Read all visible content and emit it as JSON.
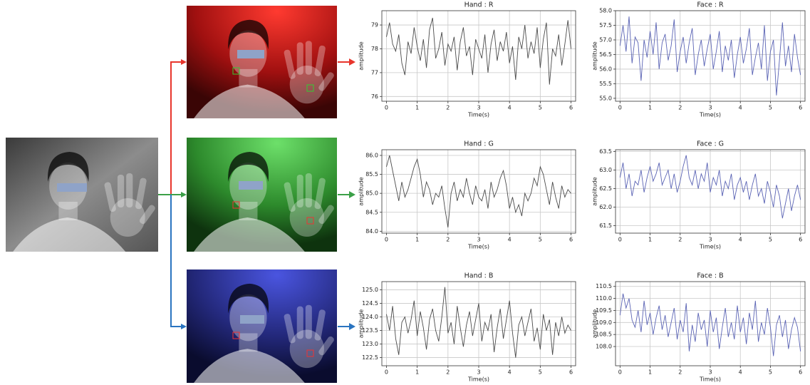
{
  "chart_data": [
    {
      "type": "line",
      "title": "Hand : R",
      "x_label": "Time(s)",
      "y_label": "amplitude",
      "x": [
        0,
        0.1,
        0.2,
        0.3,
        0.4,
        0.5,
        0.6,
        0.7,
        0.8,
        0.9,
        1,
        1.1,
        1.2,
        1.3,
        1.4,
        1.5,
        1.6,
        1.7,
        1.8,
        1.9,
        2,
        2.1,
        2.2,
        2.3,
        2.4,
        2.5,
        2.6,
        2.7,
        2.8,
        2.9,
        3,
        3.1,
        3.2,
        3.3,
        3.4,
        3.5,
        3.6,
        3.7,
        3.8,
        3.9,
        4,
        4.1,
        4.2,
        4.3,
        4.4,
        4.5,
        4.6,
        4.7,
        4.8,
        4.9,
        5,
        5.1,
        5.2,
        5.3,
        5.4,
        5.5,
        5.6,
        5.7,
        5.8,
        5.9,
        6
      ],
      "values": [
        78.5,
        79.1,
        78.2,
        77.9,
        78.6,
        77.4,
        76.9,
        78.3,
        77.8,
        78.9,
        78.1,
        77.5,
        78.4,
        77.2,
        78.8,
        79.3,
        77.6,
        78.0,
        78.7,
        77.3,
        78.2,
        77.9,
        78.5,
        77.1,
        78.3,
        78.9,
        77.7,
        78.1,
        76.9,
        78.4,
        78.0,
        77.6,
        78.6,
        77.0,
        78.2,
        78.8,
        77.5,
        78.3,
        77.9,
        78.7,
        77.4,
        78.1,
        76.7,
        78.5,
        78.0,
        79.0,
        77.6,
        78.3,
        77.8,
        78.9,
        77.2,
        78.4,
        79.1,
        76.5,
        78.0,
        77.7,
        78.6,
        77.3,
        78.2,
        79.2,
        78.0
      ],
      "color": "#4a4a4a",
      "xlim": [
        -0.15,
        6.15
      ],
      "xticks": [
        0,
        1,
        2,
        3,
        4,
        5,
        6
      ],
      "ylim": [
        75.8,
        79.6
      ],
      "yticks": [
        76,
        77,
        78,
        79
      ],
      "grid": true
    },
    {
      "type": "line",
      "title": "Face : R",
      "x_label": "Time(s)",
      "y_label": "amplitude",
      "x": [
        0,
        0.1,
        0.2,
        0.3,
        0.4,
        0.5,
        0.6,
        0.7,
        0.8,
        0.9,
        1,
        1.1,
        1.2,
        1.3,
        1.4,
        1.5,
        1.6,
        1.7,
        1.8,
        1.9,
        2,
        2.1,
        2.2,
        2.3,
        2.4,
        2.5,
        2.6,
        2.7,
        2.8,
        2.9,
        3,
        3.1,
        3.2,
        3.3,
        3.4,
        3.5,
        3.6,
        3.7,
        3.8,
        3.9,
        4,
        4.1,
        4.2,
        4.3,
        4.4,
        4.5,
        4.6,
        4.7,
        4.8,
        4.9,
        5,
        5.1,
        5.2,
        5.3,
        5.4,
        5.5,
        5.6,
        5.7,
        5.8,
        5.9,
        6
      ],
      "values": [
        56.8,
        57.5,
        56.6,
        57.8,
        56.2,
        57.1,
        56.9,
        55.6,
        57.0,
        56.4,
        57.3,
        56.5,
        57.6,
        56.0,
        56.9,
        57.2,
        56.3,
        56.8,
        57.7,
        55.9,
        56.6,
        57.1,
        56.2,
        56.9,
        57.4,
        55.8,
        56.5,
        57.0,
        56.1,
        56.7,
        57.2,
        56.0,
        56.6,
        57.3,
        55.9,
        56.8,
        56.3,
        57.0,
        55.7,
        56.5,
        57.1,
        56.2,
        56.7,
        57.4,
        55.8,
        56.4,
        56.9,
        56.0,
        57.5,
        55.6,
        56.6,
        57.0,
        55.1,
        56.3,
        57.6,
        56.1,
        56.8,
        55.9,
        57.2,
        56.4,
        55.8
      ],
      "color": "#5a63b4",
      "xlim": [
        -0.15,
        6.15
      ],
      "xticks": [
        0,
        1,
        2,
        3,
        4,
        5,
        6
      ],
      "ylim": [
        54.9,
        58.0
      ],
      "yticks": [
        {
          "value": 55,
          "label": "55.0"
        },
        55.5,
        {
          "value": 56,
          "label": "56.0"
        },
        56.5,
        {
          "value": 57,
          "label": "57.0"
        },
        57.5,
        {
          "value": 58,
          "label": "58.0"
        }
      ],
      "grid": true
    },
    {
      "type": "line",
      "title": "Hand : G",
      "x_label": "Time(s)",
      "y_label": "amplitude",
      "x": [
        0,
        0.1,
        0.2,
        0.3,
        0.4,
        0.5,
        0.6,
        0.7,
        0.8,
        0.9,
        1,
        1.1,
        1.2,
        1.3,
        1.4,
        1.5,
        1.6,
        1.7,
        1.8,
        1.9,
        2,
        2.1,
        2.2,
        2.3,
        2.4,
        2.5,
        2.6,
        2.7,
        2.8,
        2.9,
        3,
        3.1,
        3.2,
        3.3,
        3.4,
        3.5,
        3.6,
        3.7,
        3.8,
        3.9,
        4,
        4.1,
        4.2,
        4.3,
        4.4,
        4.5,
        4.6,
        4.7,
        4.8,
        4.9,
        5,
        5.1,
        5.2,
        5.3,
        5.4,
        5.5,
        5.6,
        5.7,
        5.8,
        5.9,
        6
      ],
      "values": [
        85.7,
        86.0,
        85.6,
        85.2,
        84.8,
        85.3,
        84.9,
        85.1,
        85.4,
        85.7,
        85.9,
        85.5,
        84.9,
        85.3,
        85.1,
        84.7,
        85.0,
        84.9,
        85.2,
        84.6,
        84.1,
        85.0,
        85.3,
        84.8,
        85.1,
        84.9,
        85.4,
        85.0,
        84.7,
        85.2,
        84.9,
        84.8,
        85.1,
        84.6,
        85.3,
        84.9,
        85.1,
        85.4,
        85.6,
        85.2,
        84.6,
        84.9,
        84.5,
        84.7,
        84.4,
        85.0,
        84.8,
        85.0,
        85.4,
        85.2,
        85.7,
        85.5,
        85.1,
        84.7,
        85.3,
        84.9,
        84.6,
        85.2,
        84.9,
        85.1,
        85.0
      ],
      "color": "#4a4a4a",
      "xlim": [
        -0.15,
        6.15
      ],
      "xticks": [
        0,
        1,
        2,
        3,
        4,
        5,
        6
      ],
      "ylim": [
        83.95,
        86.15
      ],
      "yticks": [
        {
          "value": 84,
          "label": "84.0"
        },
        84.5,
        {
          "value": 85,
          "label": "85.0"
        },
        85.5,
        {
          "value": 86,
          "label": "86.0"
        }
      ],
      "grid": true
    },
    {
      "type": "line",
      "title": "Face : G",
      "x_label": "Time(s)",
      "y_label": "amplitude",
      "x": [
        0,
        0.1,
        0.2,
        0.3,
        0.4,
        0.5,
        0.6,
        0.7,
        0.8,
        0.9,
        1,
        1.1,
        1.2,
        1.3,
        1.4,
        1.5,
        1.6,
        1.7,
        1.8,
        1.9,
        2,
        2.1,
        2.2,
        2.3,
        2.4,
        2.5,
        2.6,
        2.7,
        2.8,
        2.9,
        3,
        3.1,
        3.2,
        3.3,
        3.4,
        3.5,
        3.6,
        3.7,
        3.8,
        3.9,
        4,
        4.1,
        4.2,
        4.3,
        4.4,
        4.5,
        4.6,
        4.7,
        4.8,
        4.9,
        5,
        5.1,
        5.2,
        5.3,
        5.4,
        5.5,
        5.6,
        5.7,
        5.8,
        5.9,
        6
      ],
      "values": [
        62.8,
        63.2,
        62.5,
        62.9,
        62.3,
        62.7,
        62.6,
        63.0,
        62.4,
        62.8,
        63.1,
        62.7,
        62.9,
        63.2,
        62.6,
        62.8,
        63.0,
        62.5,
        62.9,
        62.4,
        62.7,
        63.1,
        63.4,
        62.8,
        62.6,
        63.0,
        62.5,
        62.9,
        62.7,
        63.2,
        62.4,
        62.8,
        62.6,
        63.0,
        62.3,
        62.7,
        62.5,
        62.9,
        62.2,
        62.6,
        62.8,
        62.4,
        62.7,
        62.2,
        62.6,
        62.9,
        62.3,
        62.5,
        62.1,
        62.7,
        62.4,
        62.0,
        62.6,
        62.3,
        61.7,
        62.1,
        62.5,
        61.9,
        62.3,
        62.6,
        62.2
      ],
      "color": "#5a63b4",
      "xlim": [
        -0.15,
        6.15
      ],
      "xticks": [
        0,
        1,
        2,
        3,
        4,
        5,
        6
      ],
      "ylim": [
        61.3,
        63.55
      ],
      "yticks": [
        61.5,
        {
          "value": 62,
          "label": "62.0"
        },
        62.5,
        {
          "value": 63,
          "label": "63.0"
        },
        63.5
      ],
      "grid": true
    },
    {
      "type": "line",
      "title": "Hand : B",
      "x_label": "Time(s)",
      "y_label": "amplitude",
      "x": [
        0,
        0.1,
        0.2,
        0.3,
        0.4,
        0.5,
        0.6,
        0.7,
        0.8,
        0.9,
        1,
        1.1,
        1.2,
        1.3,
        1.4,
        1.5,
        1.6,
        1.7,
        1.8,
        1.9,
        2,
        2.1,
        2.2,
        2.3,
        2.4,
        2.5,
        2.6,
        2.7,
        2.8,
        2.9,
        3,
        3.1,
        3.2,
        3.3,
        3.4,
        3.5,
        3.6,
        3.7,
        3.8,
        3.9,
        4,
        4.1,
        4.2,
        4.3,
        4.4,
        4.5,
        4.6,
        4.7,
        4.8,
        4.9,
        5,
        5.1,
        5.2,
        5.3,
        5.4,
        5.5,
        5.6,
        5.7,
        5.8,
        5.9,
        6
      ],
      "values": [
        124.1,
        123.5,
        124.4,
        123.2,
        122.6,
        123.8,
        124.0,
        123.4,
        123.9,
        124.6,
        123.3,
        124.2,
        123.6,
        122.8,
        123.9,
        124.3,
        123.5,
        123.1,
        124.0,
        125.1,
        123.4,
        123.8,
        123.0,
        124.4,
        123.6,
        122.9,
        123.7,
        124.2,
        123.3,
        123.9,
        124.5,
        123.1,
        123.8,
        123.5,
        124.1,
        122.7,
        123.6,
        124.3,
        123.2,
        123.9,
        124.6,
        123.4,
        122.5,
        123.7,
        124.0,
        123.3,
        123.8,
        124.3,
        123.1,
        123.6,
        122.8,
        124.1,
        123.5,
        123.9,
        122.6,
        123.8,
        123.3,
        124.0,
        123.4,
        123.7,
        123.5
      ],
      "color": "#4a4a4a",
      "xlim": [
        -0.15,
        6.15
      ],
      "xticks": [
        0,
        1,
        2,
        3,
        4,
        5,
        6
      ],
      "ylim": [
        122.2,
        125.3
      ],
      "yticks": [
        122.5,
        {
          "value": 123,
          "label": "123.0"
        },
        123.5,
        {
          "value": 124,
          "label": "124.0"
        },
        124.5,
        {
          "value": 125,
          "label": "125.0"
        }
      ],
      "grid": true
    },
    {
      "type": "line",
      "title": "Face : B",
      "x_label": "Time(s)",
      "y_label": "amplitude",
      "x": [
        0,
        0.1,
        0.2,
        0.3,
        0.4,
        0.5,
        0.6,
        0.7,
        0.8,
        0.9,
        1,
        1.1,
        1.2,
        1.3,
        1.4,
        1.5,
        1.6,
        1.7,
        1.8,
        1.9,
        2,
        2.1,
        2.2,
        2.3,
        2.4,
        2.5,
        2.6,
        2.7,
        2.8,
        2.9,
        3,
        3.1,
        3.2,
        3.3,
        3.4,
        3.5,
        3.6,
        3.7,
        3.8,
        3.9,
        4,
        4.1,
        4.2,
        4.3,
        4.4,
        4.5,
        4.6,
        4.7,
        4.8,
        4.9,
        5,
        5.1,
        5.2,
        5.3,
        5.4,
        5.5,
        5.6,
        5.7,
        5.8,
        5.9,
        6
      ],
      "values": [
        109.3,
        110.2,
        109.6,
        110.0,
        109.1,
        108.8,
        109.5,
        108.6,
        109.9,
        108.9,
        109.4,
        108.5,
        109.2,
        109.7,
        108.7,
        109.3,
        108.4,
        109.0,
        109.6,
        108.3,
        109.1,
        108.6,
        109.8,
        107.8,
        108.9,
        108.2,
        109.4,
        108.7,
        109.1,
        108.0,
        109.5,
        108.6,
        109.2,
        107.9,
        108.8,
        109.6,
        108.4,
        109.0,
        108.3,
        109.7,
        108.6,
        109.2,
        108.1,
        109.4,
        108.7,
        109.9,
        108.2,
        109.0,
        108.5,
        109.6,
        108.8,
        107.6,
        108.9,
        109.3,
        108.4,
        109.1,
        107.9,
        108.7,
        109.2,
        108.8,
        107.8
      ],
      "color": "#5a63b4",
      "xlim": [
        -0.15,
        6.15
      ],
      "xticks": [
        0,
        1,
        2,
        3,
        4,
        5,
        6
      ],
      "ylim": [
        107.2,
        110.7
      ],
      "yticks": [
        {
          "value": 108,
          "label": "108.0"
        },
        108.5,
        {
          "value": 109,
          "label": "109.0"
        },
        109.5,
        {
          "value": 110,
          "label": "110.0"
        },
        110.5
      ],
      "grid": true
    }
  ]
}
